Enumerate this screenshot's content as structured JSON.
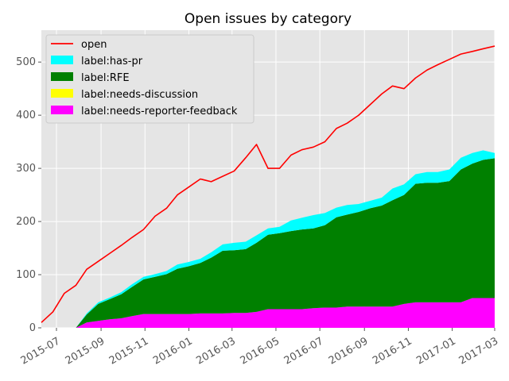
{
  "chart_data": {
    "type": "area",
    "title": "Open issues by category",
    "xlabel": "",
    "ylabel": "",
    "x_start": "2015-06-10",
    "x_end": "2017-03-01",
    "xlim": [
      "2015-06-10",
      "2017-03-01"
    ],
    "ylim": [
      0,
      560
    ],
    "x_tick_labels": [
      "2015-07",
      "2015-09",
      "2015-11",
      "2016-01",
      "2016-03",
      "2016-05",
      "2016-07",
      "2016-09",
      "2016-11",
      "2017-01",
      "2017-03"
    ],
    "x_ticks": [
      "2015-07-01",
      "2015-09-01",
      "2015-11-01",
      "2016-01-01",
      "2016-03-01",
      "2016-05-01",
      "2016-07-01",
      "2016-09-01",
      "2016-11-01",
      "2017-01-01",
      "2017-03-01"
    ],
    "y_ticks": [
      0,
      100,
      200,
      300,
      400,
      500
    ],
    "grid": true,
    "legend_position": "top-left",
    "stacked": true,
    "x": [
      "2015-06-10",
      "2015-06-26",
      "2015-07-12",
      "2015-07-28",
      "2015-08-12",
      "2015-08-28",
      "2015-09-13",
      "2015-09-29",
      "2015-10-14",
      "2015-10-30",
      "2015-11-15",
      "2015-12-01",
      "2015-12-16",
      "2016-01-01",
      "2016-01-17",
      "2016-02-01",
      "2016-02-17",
      "2016-03-04",
      "2016-03-20",
      "2016-04-04",
      "2016-04-20",
      "2016-05-06",
      "2016-05-22",
      "2016-06-06",
      "2016-06-22",
      "2016-07-08",
      "2016-07-24",
      "2016-08-08",
      "2016-08-24",
      "2016-09-09",
      "2016-09-25",
      "2016-10-10",
      "2016-10-26",
      "2016-11-11",
      "2016-11-27",
      "2016-12-12",
      "2016-12-28",
      "2017-01-13",
      "2017-01-29",
      "2017-02-13",
      "2017-03-01"
    ],
    "series": [
      {
        "name": "open",
        "kind": "line",
        "color": "#ff0000",
        "values": [
          10,
          30,
          65,
          80,
          110,
          125,
          140,
          155,
          170,
          185,
          210,
          225,
          250,
          265,
          280,
          275,
          285,
          295,
          320,
          345,
          300,
          300,
          325,
          335,
          340,
          350,
          375,
          385,
          400,
          420,
          440,
          455,
          450,
          470,
          485,
          495,
          505,
          515,
          520,
          525,
          530
        ]
      },
      {
        "name": "label:has-pr",
        "kind": "area",
        "color": "#00ffff",
        "values": [
          0,
          0,
          0,
          0,
          2,
          3,
          3,
          4,
          5,
          5,
          5,
          6,
          8,
          8,
          8,
          10,
          12,
          14,
          14,
          14,
          12,
          12,
          20,
          22,
          25,
          23,
          18,
          18,
          15,
          14,
          15,
          22,
          20,
          18,
          20,
          20,
          22,
          22,
          20,
          18,
          10
        ]
      },
      {
        "name": "label:RFE",
        "kind": "area",
        "color": "#008000",
        "values": [
          0,
          0,
          0,
          0,
          15,
          32,
          38,
          45,
          55,
          65,
          70,
          75,
          85,
          90,
          95,
          105,
          118,
          118,
          120,
          130,
          140,
          143,
          147,
          150,
          150,
          155,
          170,
          173,
          178,
          185,
          190,
          200,
          205,
          223,
          225,
          225,
          228,
          250,
          253,
          260,
          263
        ]
      },
      {
        "name": "label:needs-discussion",
        "kind": "area",
        "color": "#ffff00",
        "values": [
          0,
          0,
          0,
          0,
          0,
          0,
          0,
          0,
          0,
          0,
          0,
          0,
          0,
          0,
          0,
          0,
          0,
          0,
          0,
          0,
          0,
          0,
          0,
          0,
          0,
          0,
          0,
          0,
          0,
          0,
          0,
          0,
          0,
          0,
          0,
          0,
          0,
          0,
          0,
          0,
          0
        ]
      },
      {
        "name": "label:needs-reporter-feedback",
        "kind": "area",
        "color": "#ff00ff",
        "values": [
          0,
          0,
          0,
          0,
          10,
          13,
          16,
          18,
          22,
          26,
          26,
          26,
          26,
          26,
          27,
          27,
          27,
          28,
          28,
          30,
          35,
          35,
          35,
          35,
          37,
          38,
          38,
          40,
          40,
          40,
          40,
          40,
          45,
          48,
          48,
          48,
          48,
          48,
          56,
          56,
          56
        ]
      }
    ]
  }
}
